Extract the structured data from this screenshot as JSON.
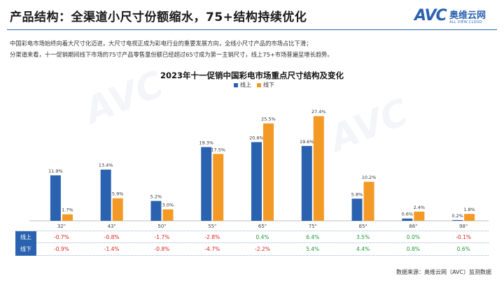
{
  "header": {
    "title": "产品结构：全渠道小尺寸份额缩水，75+结构持续优化",
    "logo_mark": "AVC",
    "logo_cn": "奥维云网",
    "logo_en": "ALL VIEW CLOUD"
  },
  "description": [
    "中国彩电市场始终向着大尺寸化迈进，大尺寸电视正成为彩电行业的重要发展方向，全线小尺寸产品的市场占比下滑；",
    "分渠道来看，十一促销期间线下市场的75寸产品零售量份额已经超过65寸成为第一主销尺寸，线上75+市场普遍呈增长趋势。"
  ],
  "colors": {
    "online": "#2a62b0",
    "offline": "#f39a26",
    "negative": "#d8261c",
    "positive": "#1e9a3a"
  },
  "chart_data": {
    "type": "bar",
    "title": "2023年十一促销中国彩电市场重点尺寸结构及变化",
    "categories": [
      "32\"",
      "43\"",
      "50\"",
      "55\"",
      "65\"",
      "75\"",
      "85\"",
      "86\"",
      "98\""
    ],
    "series": [
      {
        "name": "线上",
        "values": [
          11.9,
          13.4,
          5.2,
          19.3,
          20.6,
          19.6,
          5.8,
          0.6,
          0.2
        ],
        "labels": [
          "11.9%",
          "13.4%",
          "5.2%",
          "19.3%",
          "20.6%",
          "19.6%",
          "5.8%",
          "0.6%",
          "0.2%"
        ]
      },
      {
        "name": "线下",
        "values": [
          1.7,
          5.9,
          3.0,
          17.5,
          25.5,
          27.4,
          10.2,
          2.4,
          1.8
        ],
        "labels": [
          "1.7%",
          "5.9%",
          "3.0%",
          "17.5%",
          "25.5%",
          "27.4%",
          "10.2%",
          "2.4%",
          "1.8%"
        ]
      }
    ],
    "ylim": [
      0,
      30
    ],
    "legend": "top-center"
  },
  "change_table": {
    "rows": [
      {
        "label": "线上",
        "values": [
          "-0.7%",
          "-0.8%",
          "-1.7%",
          "-2.8%",
          "0.4%",
          "6.4%",
          "3.5%",
          "0.0%",
          "-0.1%"
        ],
        "signs": [
          "neg",
          "neg",
          "neg",
          "neg",
          "pos",
          "pos",
          "pos",
          "pos",
          "neg"
        ]
      },
      {
        "label": "线下",
        "values": [
          "-0.9%",
          "-1.4%",
          "-0.8%",
          "-4.7%",
          "-2.2%",
          "5.4%",
          "4.4%",
          "0.8%",
          "0.6%"
        ],
        "signs": [
          "neg",
          "neg",
          "neg",
          "neg",
          "neg",
          "pos",
          "pos",
          "pos",
          "pos"
        ]
      }
    ]
  },
  "footer": {
    "source": "数据来源：奥维云网（AVC）监测数据"
  }
}
